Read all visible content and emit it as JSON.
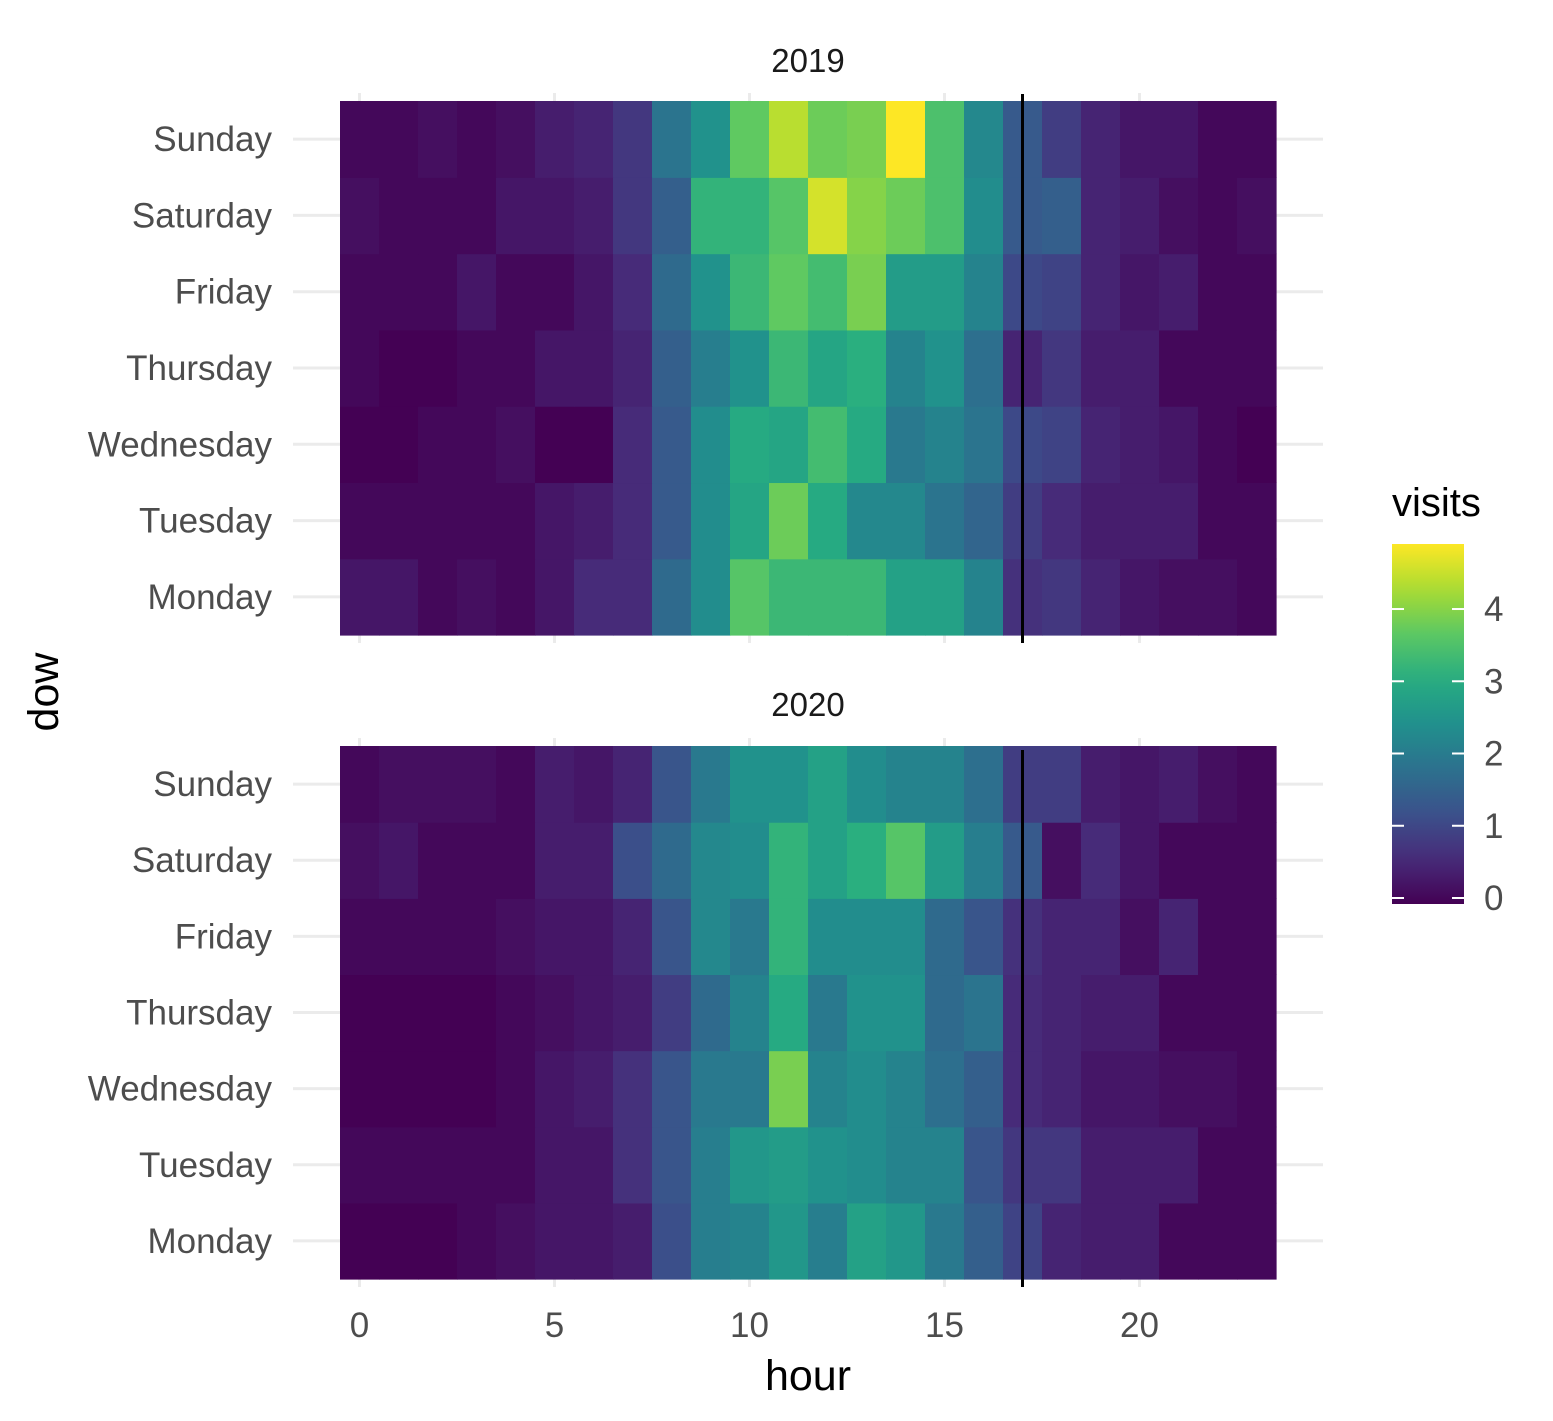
{
  "chart_data": {
    "type": "heatmap",
    "x_axis": {
      "title": "hour",
      "ticks": [
        0,
        5,
        10,
        15,
        20
      ],
      "range": [
        -0.5,
        23.5
      ]
    },
    "y_axis": {
      "title": "dow",
      "categories": [
        "Monday",
        "Tuesday",
        "Wednesday",
        "Thursday",
        "Friday",
        "Saturday",
        "Sunday"
      ]
    },
    "reference_line_x": 17,
    "legend": {
      "title": "visits",
      "ticks": [
        0,
        1,
        2,
        3,
        4
      ],
      "max": 4.9,
      "placement": "right",
      "palette": "viridis"
    },
    "facets": [
      {
        "title": "2019",
        "values": {
          "Sunday": [
            0.1,
            0.1,
            0.2,
            0.1,
            0.2,
            0.4,
            0.5,
            0.8,
            1.9,
            2.5,
            3.7,
            4.4,
            3.8,
            3.9,
            4.9,
            3.5,
            2.3,
            1.4,
            0.9,
            0.5,
            0.3,
            0.3,
            0.1,
            0.1
          ],
          "Saturday": [
            0.2,
            0.1,
            0.1,
            0.1,
            0.3,
            0.3,
            0.4,
            0.8,
            1.5,
            3.2,
            3.2,
            3.6,
            4.6,
            4.0,
            3.8,
            3.5,
            2.4,
            1.4,
            1.5,
            0.5,
            0.4,
            0.2,
            0.1,
            0.2
          ],
          "Friday": [
            0.1,
            0.1,
            0.1,
            0.3,
            0.1,
            0.1,
            0.3,
            0.6,
            1.7,
            2.5,
            3.3,
            3.7,
            3.4,
            3.9,
            2.7,
            2.7,
            2.2,
            1.1,
            1.0,
            0.5,
            0.3,
            0.4,
            0.1,
            0.1
          ],
          "Thursday": [
            0.1,
            0.0,
            0.0,
            0.1,
            0.1,
            0.3,
            0.3,
            0.5,
            1.5,
            2.1,
            2.5,
            3.3,
            2.9,
            3.1,
            2.2,
            2.5,
            1.8,
            0.5,
            0.8,
            0.4,
            0.4,
            0.1,
            0.1,
            0.1
          ],
          "Wednesday": [
            0.0,
            0.0,
            0.1,
            0.1,
            0.2,
            0.0,
            0.0,
            0.6,
            1.4,
            2.4,
            3.0,
            2.9,
            3.4,
            3.0,
            2.0,
            2.2,
            1.9,
            1.1,
            1.0,
            0.5,
            0.4,
            0.3,
            0.1,
            0.0
          ],
          "Tuesday": [
            0.1,
            0.1,
            0.1,
            0.1,
            0.1,
            0.3,
            0.4,
            0.6,
            1.4,
            2.4,
            2.9,
            3.8,
            3.0,
            2.3,
            2.3,
            1.9,
            1.6,
            0.9,
            0.6,
            0.4,
            0.4,
            0.4,
            0.1,
            0.1
          ],
          "Monday": [
            0.3,
            0.3,
            0.1,
            0.2,
            0.1,
            0.3,
            0.6,
            0.6,
            1.7,
            2.4,
            3.6,
            3.3,
            3.3,
            3.3,
            2.8,
            2.8,
            2.2,
            0.7,
            0.8,
            0.5,
            0.3,
            0.2,
            0.2,
            0.1
          ]
        }
      },
      {
        "title": "2020",
        "values": {
          "Sunday": [
            0.1,
            0.2,
            0.2,
            0.2,
            0.1,
            0.4,
            0.3,
            0.5,
            1.3,
            2.0,
            2.5,
            2.5,
            2.8,
            2.4,
            2.2,
            2.2,
            1.8,
            0.9,
            0.9,
            0.4,
            0.3,
            0.4,
            0.2,
            0.1
          ],
          "Saturday": [
            0.2,
            0.3,
            0.1,
            0.1,
            0.1,
            0.4,
            0.4,
            1.2,
            1.7,
            2.3,
            2.4,
            3.2,
            2.8,
            3.1,
            3.6,
            2.7,
            2.1,
            1.4,
            0.2,
            0.6,
            0.3,
            0.1,
            0.1,
            0.1
          ],
          "Friday": [
            0.1,
            0.1,
            0.1,
            0.1,
            0.2,
            0.3,
            0.3,
            0.5,
            1.3,
            2.3,
            2.0,
            3.2,
            2.4,
            2.4,
            2.4,
            1.7,
            1.3,
            0.7,
            0.5,
            0.5,
            0.2,
            0.5,
            0.1,
            0.1
          ],
          "Thursday": [
            0.0,
            0.0,
            0.0,
            0.0,
            0.1,
            0.2,
            0.3,
            0.4,
            0.9,
            1.7,
            2.2,
            3.0,
            2.0,
            2.5,
            2.5,
            1.7,
            1.9,
            0.6,
            0.5,
            0.4,
            0.4,
            0.1,
            0.1,
            0.1
          ],
          "Wednesday": [
            0.0,
            0.0,
            0.0,
            0.0,
            0.1,
            0.3,
            0.4,
            0.7,
            1.3,
            2.0,
            2.0,
            3.9,
            2.2,
            2.4,
            2.2,
            1.8,
            1.5,
            0.6,
            0.5,
            0.3,
            0.3,
            0.2,
            0.2,
            0.1
          ],
          "Tuesday": [
            0.1,
            0.1,
            0.1,
            0.1,
            0.1,
            0.3,
            0.3,
            0.7,
            1.3,
            2.1,
            2.6,
            2.7,
            2.5,
            2.4,
            2.2,
            2.2,
            1.3,
            0.8,
            0.8,
            0.4,
            0.4,
            0.4,
            0.1,
            0.1
          ],
          "Monday": [
            0.0,
            0.0,
            0.0,
            0.1,
            0.2,
            0.3,
            0.3,
            0.4,
            1.2,
            2.1,
            2.2,
            2.6,
            2.1,
            2.8,
            2.6,
            2.0,
            1.5,
            1.0,
            0.5,
            0.4,
            0.4,
            0.1,
            0.1,
            0.1
          ]
        }
      }
    ]
  }
}
